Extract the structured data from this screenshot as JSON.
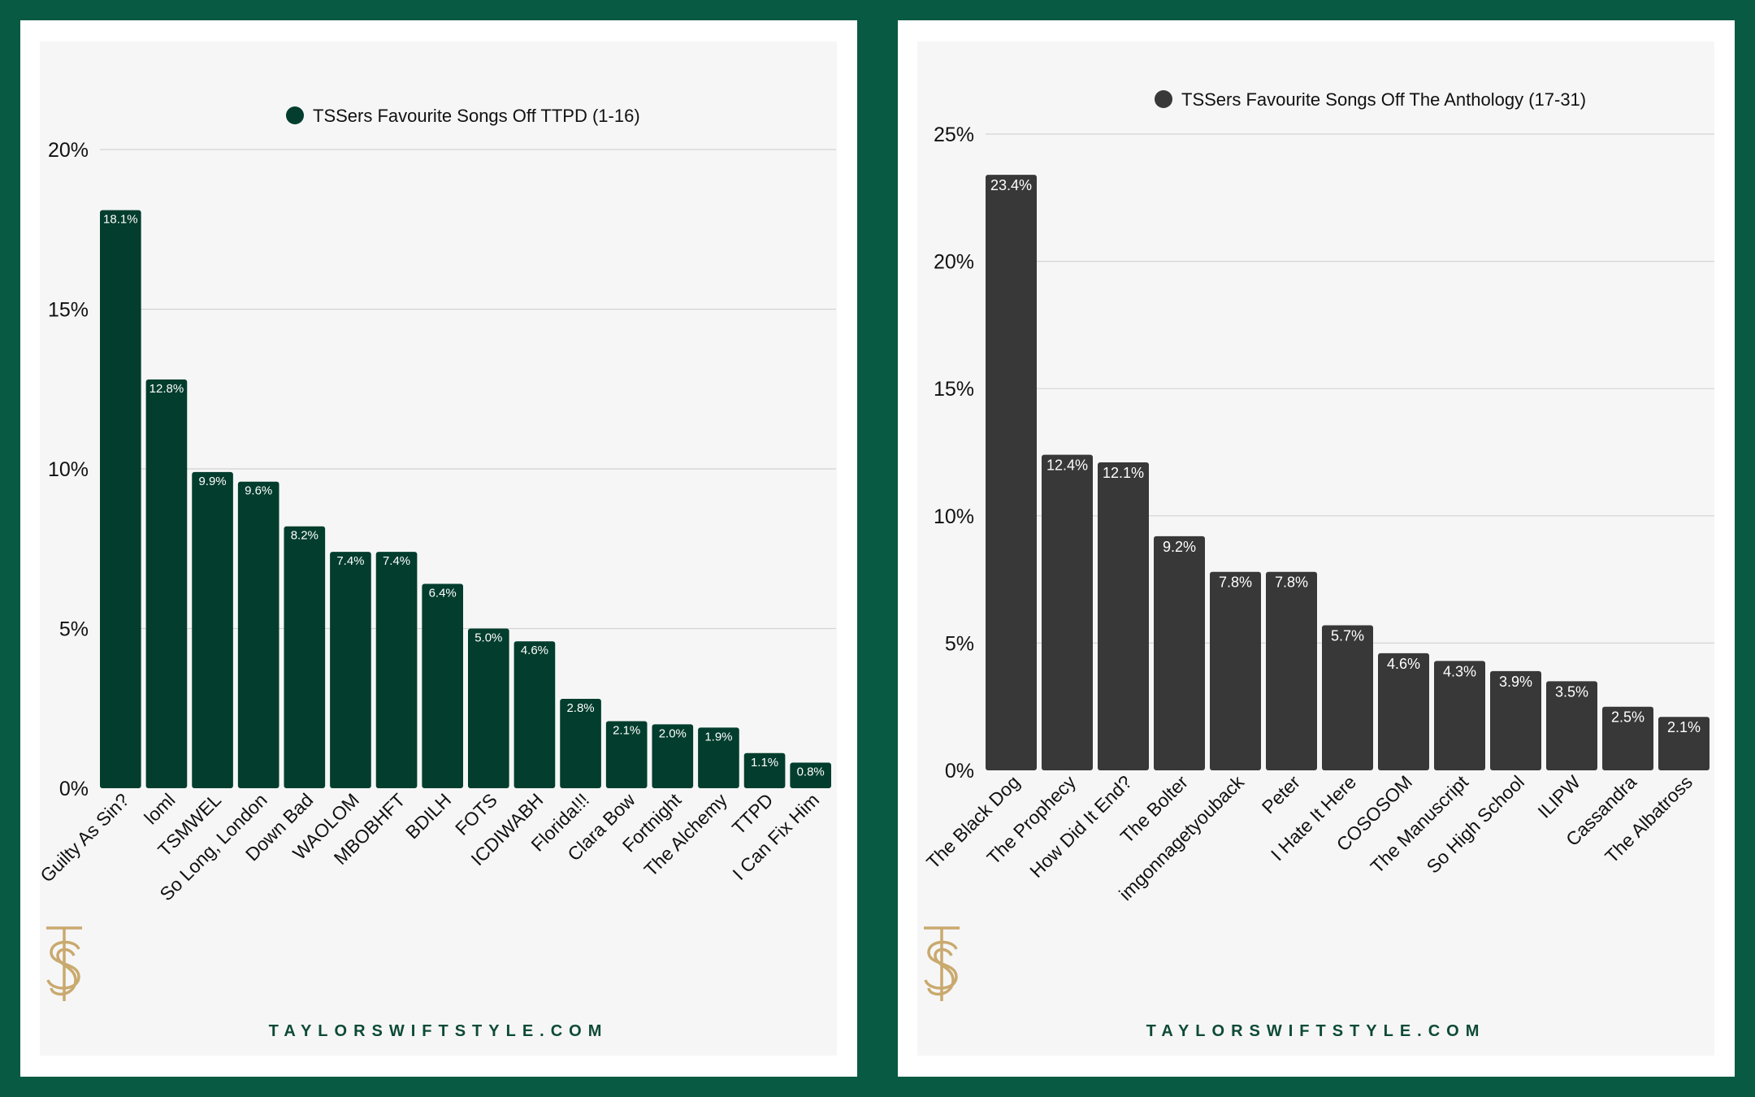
{
  "accent": {
    "green_bg": "#085a43",
    "left_bar": "#023d2d",
    "right_bar": "#383838",
    "logo_gold": "#c9a96e"
  },
  "logo_icon": "ts-monogram",
  "site_label": "TAYLORSWIFTSTYLE.COM",
  "chart_data": [
    {
      "type": "bar",
      "title": "TSSers Favourite Songs Off TTPD (1-16)",
      "categories": [
        "Guilty As Sin?",
        "loml",
        "TSMWEL",
        "So Long, London",
        "Down Bad",
        "WAOLOM",
        "MBOBHFT",
        "BDILH",
        "FOTS",
        "ICDIWABH",
        "Florida!!!",
        "Clara Bow",
        "Fortnight",
        "The Alchemy",
        "TTPD",
        "I Can Fix Him"
      ],
      "values": [
        18.1,
        12.8,
        9.9,
        9.6,
        8.2,
        7.4,
        7.4,
        6.4,
        5.0,
        4.6,
        2.8,
        2.1,
        2.0,
        1.9,
        1.1,
        0.8
      ],
      "labels": [
        "18.1%",
        "12.8%",
        "9.9%",
        "9.6%",
        "8.2%",
        "7.4%",
        "7.4%",
        "6.4%",
        "5.0%",
        "4.6%",
        "2.8%",
        "2.1%",
        "2.0%",
        "1.9%",
        "1.1%",
        "0.8%"
      ],
      "yticks": [
        "0%",
        "5%",
        "10%",
        "15%",
        "20%"
      ],
      "ylim": [
        0,
        20
      ],
      "grid": true,
      "legend_position": "top-center",
      "color": "#023d2d"
    },
    {
      "type": "bar",
      "title": "TSSers Favourite Songs Off The Anthology (17-31)",
      "categories": [
        "The Black Dog",
        "The Prophecy",
        "How Did It End?",
        "The Bolter",
        "imgonnagetyouback",
        "Peter",
        "I Hate It Here",
        "COSOSOM",
        "The Manuscript",
        "So High School",
        "ILIPW",
        "Cassandra",
        "The Albatross"
      ],
      "values": [
        23.4,
        12.4,
        12.1,
        9.2,
        7.8,
        7.8,
        5.7,
        4.6,
        4.3,
        3.9,
        3.5,
        2.5,
        2.1
      ],
      "labels": [
        "23.4%",
        "12.4%",
        "12.1%",
        "9.2%",
        "7.8%",
        "7.8%",
        "5.7%",
        "4.6%",
        "4.3%",
        "3.9%",
        "3.5%",
        "2.5%",
        "2.1%"
      ],
      "yticks": [
        "0%",
        "5%",
        "10%",
        "15%",
        "20%",
        "25%"
      ],
      "ylim": [
        0,
        25
      ],
      "grid": true,
      "legend_position": "top-center",
      "color": "#383838"
    }
  ]
}
